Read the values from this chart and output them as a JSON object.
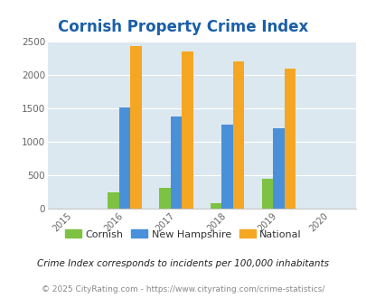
{
  "title": "Cornish Property Crime Index",
  "years": [
    2015,
    2016,
    2017,
    2018,
    2019,
    2020
  ],
  "data_years": [
    2016,
    2017,
    2018,
    2019
  ],
  "cornish": [
    250,
    315,
    75,
    450
  ],
  "new_hampshire": [
    1510,
    1385,
    1260,
    1210
  ],
  "national": [
    2440,
    2360,
    2200,
    2100
  ],
  "colors": {
    "cornish": "#7dc242",
    "new_hampshire": "#4a90d9",
    "national": "#f5a623"
  },
  "ylim": [
    0,
    2500
  ],
  "yticks": [
    0,
    500,
    1000,
    1500,
    2000,
    2500
  ],
  "xlim": [
    2014.5,
    2020.5
  ],
  "bg_color": "#dce8f0",
  "grid_color": "#ffffff",
  "title_color": "#1a5fa8",
  "title_fontsize": 12,
  "legend_labels": [
    "Cornish",
    "New Hampshire",
    "National"
  ],
  "footnote1": "Crime Index corresponds to incidents per 100,000 inhabitants",
  "footnote2": "© 2025 CityRating.com - https://www.cityrating.com/crime-statistics/",
  "bar_width": 0.22
}
